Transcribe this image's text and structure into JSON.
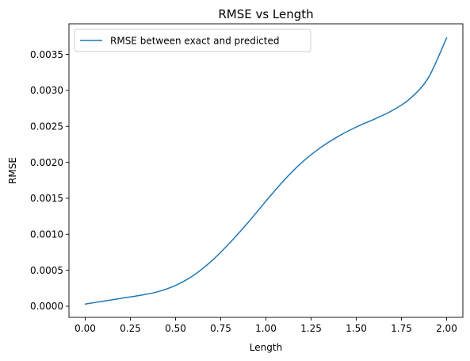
{
  "chart_data": {
    "type": "line",
    "title": "RMSE vs Length",
    "xlabel": "Length",
    "ylabel": "RMSE",
    "xlim": [
      -0.09,
      2.09
    ],
    "ylim": [
      -0.000155,
      0.003925
    ],
    "xticks": [
      0.0,
      0.25,
      0.5,
      0.75,
      1.0,
      1.25,
      1.5,
      1.75,
      2.0
    ],
    "xtick_labels": [
      "0.00",
      "0.25",
      "0.50",
      "0.75",
      "1.00",
      "1.25",
      "1.50",
      "1.75",
      "2.00"
    ],
    "yticks": [
      0.0,
      0.0005,
      0.001,
      0.0015,
      0.002,
      0.0025,
      0.003,
      0.0035
    ],
    "ytick_labels": [
      "0.0000",
      "0.0005",
      "0.0010",
      "0.0015",
      "0.0020",
      "0.0025",
      "0.0030",
      "0.0035"
    ],
    "grid": false,
    "legend_position": "upper-left",
    "series": [
      {
        "name": "RMSE between exact and predicted",
        "color": "#1f77b4",
        "x": [
          0.0,
          0.1,
          0.2,
          0.3,
          0.4,
          0.5,
          0.6,
          0.7,
          0.8,
          0.9,
          1.0,
          1.1,
          1.2,
          1.3,
          1.4,
          1.5,
          1.6,
          1.7,
          1.8,
          1.9,
          2.0
        ],
        "y": [
          3e-05,
          7e-05,
          0.00011,
          0.00015,
          0.0002,
          0.00029,
          0.00043,
          0.00063,
          0.00088,
          0.00116,
          0.00146,
          0.00175,
          0.002,
          0.0022,
          0.00236,
          0.00249,
          0.0026,
          0.00272,
          0.00289,
          0.00318,
          0.00373
        ]
      }
    ]
  }
}
